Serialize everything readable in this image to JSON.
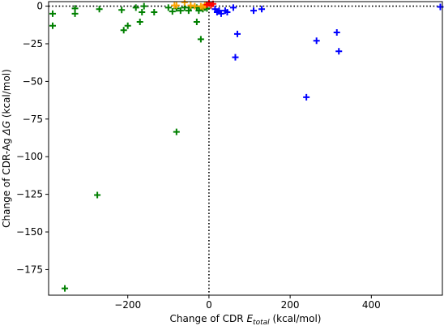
{
  "chart_data": {
    "type": "scatter",
    "xlabel": "Change of CDR E_total (kcal/mol)",
    "xlabel_parts": {
      "prefix": "Change of CDR ",
      "symbol": "E",
      "subscript": "total",
      "suffix": " (kcal/mol)"
    },
    "ylabel": "Change of CDR-Ag ΔG (kcal/mol)",
    "ylabel_parts": {
      "prefix": "Change of CDR-Ag ",
      "symbol": "ΔG",
      "suffix": " (kcal/mol)"
    },
    "xlim": [
      -395,
      575
    ],
    "ylim": [
      -192,
      3
    ],
    "xticks": [
      -200,
      0,
      200,
      400
    ],
    "xtick_labels": [
      "−200",
      "0",
      "200",
      "400"
    ],
    "yticks": [
      0,
      -25,
      -50,
      -75,
      -100,
      -125,
      -150,
      -175
    ],
    "ytick_labels": [
      "0",
      "−25",
      "−50",
      "−75",
      "−100",
      "−125",
      "−150",
      "−175"
    ],
    "reference_lines": {
      "x": 0,
      "y": 0,
      "style": "dotted"
    },
    "grid": false,
    "marker": "+",
    "series": [
      {
        "color": "#008000",
        "points": [
          {
            "x": -385,
            "y": -5
          },
          {
            "x": -385,
            "y": -13
          },
          {
            "x": -330,
            "y": -1.5
          },
          {
            "x": -330,
            "y": -5
          },
          {
            "x": -270,
            "y": -2
          },
          {
            "x": -215,
            "y": -2.5
          },
          {
            "x": -210,
            "y": -16
          },
          {
            "x": -200,
            "y": -13
          },
          {
            "x": -180,
            "y": -1
          },
          {
            "x": -170,
            "y": -10.5
          },
          {
            "x": -165,
            "y": -4
          },
          {
            "x": -160,
            "y": 0
          },
          {
            "x": -135,
            "y": -4
          },
          {
            "x": -100,
            "y": -1
          },
          {
            "x": -90,
            "y": -3.5
          },
          {
            "x": -80,
            "y": -1.5
          },
          {
            "x": -70,
            "y": -3
          },
          {
            "x": -60,
            "y": -1
          },
          {
            "x": -50,
            "y": -3
          },
          {
            "x": -45,
            "y": -1
          },
          {
            "x": -30,
            "y": -1
          },
          {
            "x": -25,
            "y": -3
          },
          {
            "x": -15,
            "y": -2
          },
          {
            "x": -10,
            "y": -1
          },
          {
            "x": -5,
            "y": -1.5
          },
          {
            "x": -30,
            "y": -10.5
          },
          {
            "x": -20,
            "y": -22
          },
          {
            "x": -80,
            "y": -83.5
          },
          {
            "x": -275,
            "y": -125.5
          },
          {
            "x": -355,
            "y": -187.5
          }
        ]
      },
      {
        "color": "#ffa500",
        "points": [
          {
            "x": -85,
            "y": 0.5
          },
          {
            "x": -80,
            "y": 0.5
          },
          {
            "x": -60,
            "y": 2.5
          },
          {
            "x": -45,
            "y": 0.5
          },
          {
            "x": -35,
            "y": 0
          },
          {
            "x": -20,
            "y": 0
          },
          {
            "x": -15,
            "y": -0.5
          },
          {
            "x": -10,
            "y": 0.5
          }
        ]
      },
      {
        "color": "#ff0000",
        "points": [
          {
            "x": -5,
            "y": 1
          },
          {
            "x": 0,
            "y": 2
          },
          {
            "x": 5,
            "y": 0.5
          },
          {
            "x": 10,
            "y": 1.5
          }
        ]
      },
      {
        "color": "#0000ff",
        "points": [
          {
            "x": 15,
            "y": -2
          },
          {
            "x": 20,
            "y": -4
          },
          {
            "x": 25,
            "y": -3
          },
          {
            "x": 30,
            "y": -5
          },
          {
            "x": 40,
            "y": -3
          },
          {
            "x": 45,
            "y": -4
          },
          {
            "x": 60,
            "y": -1
          },
          {
            "x": 65,
            "y": -34
          },
          {
            "x": 70,
            "y": -18.5
          },
          {
            "x": 110,
            "y": -3
          },
          {
            "x": 130,
            "y": -2
          },
          {
            "x": 240,
            "y": -60.5
          },
          {
            "x": 265,
            "y": -23
          },
          {
            "x": 315,
            "y": -17.5
          },
          {
            "x": 320,
            "y": -30
          },
          {
            "x": 570,
            "y": -0.5
          }
        ]
      }
    ]
  }
}
